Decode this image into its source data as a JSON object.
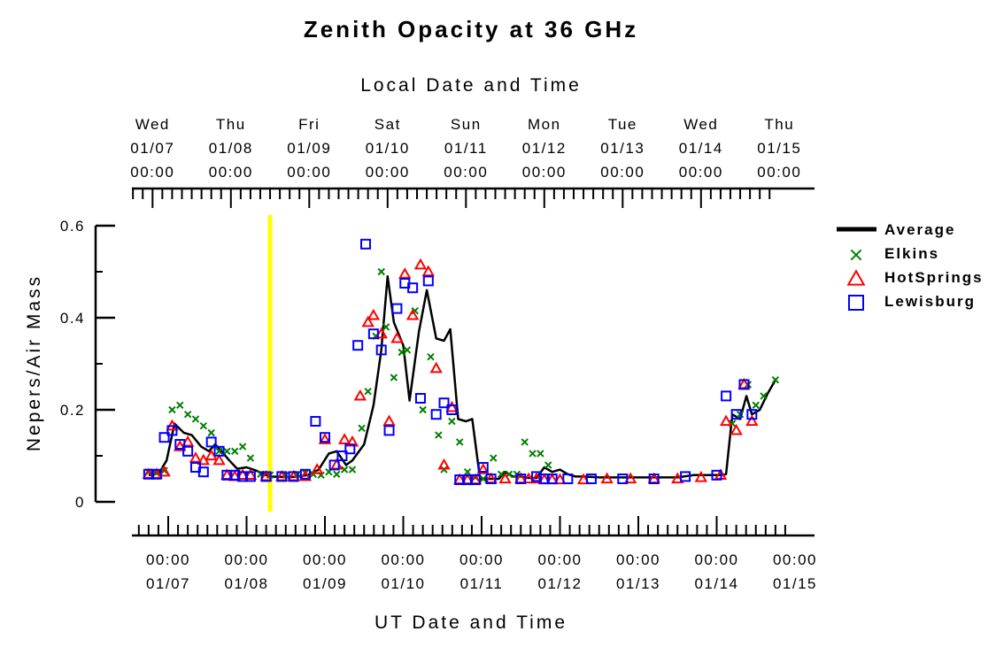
{
  "chart_data": {
    "type": "scatter",
    "title": "Zenith Opacity at 36 GHz",
    "top_axis_title": "Local Date and Time",
    "bottom_axis_title": "UT Date and Time",
    "ylabel": "Nepers/Air Mass",
    "ylim": [
      0,
      0.6
    ],
    "y_ticks": [
      "0",
      "0.2",
      "0.4",
      "0.6"
    ],
    "y_tick_values": [
      0,
      0.2,
      0.4,
      0.6
    ],
    "xlim": [
      -0.5,
      8.25
    ],
    "top_ticks": [
      {
        "x": -0.2,
        "day": "Wed",
        "date": "01/07",
        "time": "00:00"
      },
      {
        "x": 0.8,
        "day": "Thu",
        "date": "01/08",
        "time": "00:00"
      },
      {
        "x": 1.8,
        "day": "Fri",
        "date": "01/09",
        "time": "00:00"
      },
      {
        "x": 2.8,
        "day": "Sat",
        "date": "01/10",
        "time": "00:00"
      },
      {
        "x": 3.8,
        "day": "Sun",
        "date": "01/11",
        "time": "00:00"
      },
      {
        "x": 4.8,
        "day": "Mon",
        "date": "01/12",
        "time": "00:00"
      },
      {
        "x": 5.8,
        "day": "Tue",
        "date": "01/13",
        "time": "00:00"
      },
      {
        "x": 6.8,
        "day": "Wed",
        "date": "01/14",
        "time": "00:00"
      },
      {
        "x": 7.8,
        "day": "Thu",
        "date": "01/15",
        "time": "00:00"
      }
    ],
    "bottom_ticks": [
      {
        "x": 0,
        "time": "00:00",
        "date": "01/07"
      },
      {
        "x": 1,
        "time": "00:00",
        "date": "01/08"
      },
      {
        "x": 2,
        "time": "00:00",
        "date": "01/09"
      },
      {
        "x": 3,
        "time": "00:00",
        "date": "01/10"
      },
      {
        "x": 4,
        "time": "00:00",
        "date": "01/11"
      },
      {
        "x": 5,
        "time": "00:00",
        "date": "01/12"
      },
      {
        "x": 6,
        "time": "00:00",
        "date": "01/13"
      },
      {
        "x": 7,
        "time": "00:00",
        "date": "01/14"
      },
      {
        "x": 8,
        "time": "00:00",
        "date": "01/15"
      }
    ],
    "current_time_marker": {
      "x": 1.3,
      "color": "#ffff00"
    },
    "legend_position": "right",
    "series": [
      {
        "name": "Average",
        "marker": "line",
        "color": "#000000",
        "points": [
          [
            -0.25,
            0.058
          ],
          [
            -0.12,
            0.062
          ],
          [
            -0.02,
            0.09
          ],
          [
            0.08,
            0.17
          ],
          [
            0.2,
            0.15
          ],
          [
            0.3,
            0.145
          ],
          [
            0.42,
            0.12
          ],
          [
            0.52,
            0.11
          ],
          [
            0.6,
            0.125
          ],
          [
            0.68,
            0.11
          ],
          [
            0.78,
            0.09
          ],
          [
            0.88,
            0.072
          ],
          [
            1.0,
            0.075
          ],
          [
            1.12,
            0.068
          ],
          [
            1.22,
            0.06
          ],
          [
            1.3,
            0.055
          ],
          [
            1.45,
            0.054
          ],
          [
            1.6,
            0.054
          ],
          [
            1.78,
            0.058
          ],
          [
            1.92,
            0.07
          ],
          [
            2.05,
            0.105
          ],
          [
            2.15,
            0.11
          ],
          [
            2.27,
            0.08
          ],
          [
            2.35,
            0.09
          ],
          [
            2.5,
            0.125
          ],
          [
            2.62,
            0.21
          ],
          [
            2.72,
            0.33
          ],
          [
            2.8,
            0.49
          ],
          [
            2.88,
            0.39
          ],
          [
            3.0,
            0.34
          ],
          [
            3.08,
            0.22
          ],
          [
            3.2,
            0.37
          ],
          [
            3.3,
            0.46
          ],
          [
            3.42,
            0.355
          ],
          [
            3.52,
            0.35
          ],
          [
            3.6,
            0.375
          ],
          [
            3.7,
            0.18
          ],
          [
            3.8,
            0.175
          ],
          [
            3.88,
            0.18
          ],
          [
            3.98,
            0.05
          ],
          [
            4.1,
            0.05
          ],
          [
            4.22,
            0.05
          ],
          [
            4.3,
            0.065
          ],
          [
            4.4,
            0.055
          ],
          [
            4.5,
            0.055
          ],
          [
            4.6,
            0.052
          ],
          [
            4.7,
            0.052
          ],
          [
            4.8,
            0.075
          ],
          [
            4.9,
            0.065
          ],
          [
            5.0,
            0.07
          ],
          [
            5.1,
            0.06
          ],
          [
            5.2,
            0.055
          ],
          [
            5.3,
            0.055
          ],
          [
            5.5,
            0.053
          ],
          [
            5.7,
            0.053
          ],
          [
            5.9,
            0.053
          ],
          [
            6.1,
            0.053
          ],
          [
            6.3,
            0.053
          ],
          [
            6.5,
            0.053
          ],
          [
            6.7,
            0.058
          ],
          [
            6.9,
            0.058
          ],
          [
            7.05,
            0.058
          ],
          [
            7.12,
            0.06
          ],
          [
            7.2,
            0.19
          ],
          [
            7.3,
            0.18
          ],
          [
            7.38,
            0.23
          ],
          [
            7.45,
            0.19
          ],
          [
            7.55,
            0.2
          ],
          [
            7.65,
            0.235
          ],
          [
            7.75,
            0.265
          ]
        ]
      },
      {
        "name": "Elkins",
        "marker": "x",
        "color": "#008000",
        "points": [
          [
            -0.25,
            0.065
          ],
          [
            -0.15,
            0.063
          ],
          [
            -0.05,
            0.068
          ],
          [
            0.05,
            0.2
          ],
          [
            0.15,
            0.21
          ],
          [
            0.25,
            0.19
          ],
          [
            0.35,
            0.18
          ],
          [
            0.45,
            0.165
          ],
          [
            0.55,
            0.15
          ],
          [
            0.65,
            0.11
          ],
          [
            0.75,
            0.11
          ],
          [
            0.85,
            0.11
          ],
          [
            0.95,
            0.12
          ],
          [
            1.05,
            0.095
          ],
          [
            1.18,
            0.06
          ],
          [
            1.3,
            0.058
          ],
          [
            1.5,
            0.058
          ],
          [
            1.65,
            0.06
          ],
          [
            1.75,
            0.063
          ],
          [
            1.85,
            0.06
          ],
          [
            1.95,
            0.058
          ],
          [
            2.05,
            0.065
          ],
          [
            2.15,
            0.06
          ],
          [
            2.25,
            0.07
          ],
          [
            2.35,
            0.07
          ],
          [
            2.47,
            0.16
          ],
          [
            2.55,
            0.24
          ],
          [
            2.65,
            0.36
          ],
          [
            2.72,
            0.5
          ],
          [
            2.78,
            0.38
          ],
          [
            2.88,
            0.27
          ],
          [
            2.98,
            0.325
          ],
          [
            3.05,
            0.33
          ],
          [
            3.15,
            0.415
          ],
          [
            3.25,
            0.2
          ],
          [
            3.35,
            0.315
          ],
          [
            3.45,
            0.145
          ],
          [
            3.52,
            0.07
          ],
          [
            3.62,
            0.175
          ],
          [
            3.72,
            0.13
          ],
          [
            3.82,
            0.065
          ],
          [
            3.92,
            0.053
          ],
          [
            4.02,
            0.05
          ],
          [
            4.15,
            0.095
          ],
          [
            4.25,
            0.06
          ],
          [
            4.35,
            0.06
          ],
          [
            4.45,
            0.06
          ],
          [
            4.55,
            0.13
          ],
          [
            4.65,
            0.105
          ],
          [
            4.75,
            0.105
          ],
          [
            4.85,
            0.08
          ],
          [
            7.2,
            0.17
          ],
          [
            7.3,
            0.19
          ],
          [
            7.4,
            0.255
          ],
          [
            7.5,
            0.21
          ],
          [
            7.6,
            0.23
          ],
          [
            7.75,
            0.265
          ]
        ]
      },
      {
        "name": "HotSprings",
        "marker": "triangle",
        "color": "#ff0000",
        "points": [
          [
            -0.25,
            0.06
          ],
          [
            -0.15,
            0.06
          ],
          [
            -0.05,
            0.065
          ],
          [
            0.05,
            0.165
          ],
          [
            0.15,
            0.12
          ],
          [
            0.25,
            0.13
          ],
          [
            0.35,
            0.095
          ],
          [
            0.45,
            0.09
          ],
          [
            0.55,
            0.1
          ],
          [
            0.65,
            0.09
          ],
          [
            0.75,
            0.058
          ],
          [
            0.85,
            0.055
          ],
          [
            0.95,
            0.058
          ],
          [
            1.05,
            0.058
          ],
          [
            1.25,
            0.055
          ],
          [
            1.45,
            0.055
          ],
          [
            1.6,
            0.055
          ],
          [
            1.75,
            0.055
          ],
          [
            1.9,
            0.07
          ],
          [
            2.0,
            0.135
          ],
          [
            2.15,
            0.08
          ],
          [
            2.25,
            0.135
          ],
          [
            2.35,
            0.13
          ],
          [
            2.45,
            0.23
          ],
          [
            2.55,
            0.39
          ],
          [
            2.62,
            0.405
          ],
          [
            2.72,
            0.365
          ],
          [
            2.82,
            0.175
          ],
          [
            2.92,
            0.355
          ],
          [
            3.02,
            0.495
          ],
          [
            3.12,
            0.405
          ],
          [
            3.22,
            0.515
          ],
          [
            3.32,
            0.5
          ],
          [
            3.42,
            0.29
          ],
          [
            3.52,
            0.08
          ],
          [
            3.62,
            0.205
          ],
          [
            3.72,
            0.048
          ],
          [
            3.82,
            0.048
          ],
          [
            3.92,
            0.048
          ],
          [
            4.02,
            0.07
          ],
          [
            4.12,
            0.05
          ],
          [
            4.3,
            0.05
          ],
          [
            4.5,
            0.05
          ],
          [
            4.6,
            0.05
          ],
          [
            4.7,
            0.05
          ],
          [
            4.8,
            0.048
          ],
          [
            4.9,
            0.048
          ],
          [
            5.0,
            0.048
          ],
          [
            5.3,
            0.048
          ],
          [
            5.6,
            0.05
          ],
          [
            5.9,
            0.05
          ],
          [
            6.2,
            0.05
          ],
          [
            6.5,
            0.05
          ],
          [
            6.8,
            0.053
          ],
          [
            7.05,
            0.058
          ],
          [
            7.12,
            0.175
          ],
          [
            7.25,
            0.155
          ],
          [
            7.35,
            0.255
          ],
          [
            7.45,
            0.175
          ]
        ]
      },
      {
        "name": "Lewisburg",
        "marker": "square",
        "color": "#0000ff",
        "points": [
          [
            -0.25,
            0.06
          ],
          [
            -0.15,
            0.06
          ],
          [
            -0.05,
            0.14
          ],
          [
            0.05,
            0.155
          ],
          [
            0.15,
            0.125
          ],
          [
            0.25,
            0.11
          ],
          [
            0.35,
            0.075
          ],
          [
            0.45,
            0.065
          ],
          [
            0.55,
            0.13
          ],
          [
            0.65,
            0.11
          ],
          [
            0.75,
            0.058
          ],
          [
            0.85,
            0.058
          ],
          [
            0.95,
            0.055
          ],
          [
            1.05,
            0.055
          ],
          [
            1.25,
            0.055
          ],
          [
            1.45,
            0.055
          ],
          [
            1.6,
            0.055
          ],
          [
            1.75,
            0.06
          ],
          [
            1.88,
            0.175
          ],
          [
            2.0,
            0.14
          ],
          [
            2.12,
            0.08
          ],
          [
            2.22,
            0.1
          ],
          [
            2.32,
            0.115
          ],
          [
            2.42,
            0.34
          ],
          [
            2.52,
            0.56
          ],
          [
            2.62,
            0.365
          ],
          [
            2.72,
            0.33
          ],
          [
            2.82,
            0.155
          ],
          [
            2.92,
            0.42
          ],
          [
            3.02,
            0.475
          ],
          [
            3.12,
            0.465
          ],
          [
            3.22,
            0.225
          ],
          [
            3.32,
            0.48
          ],
          [
            3.42,
            0.19
          ],
          [
            3.52,
            0.215
          ],
          [
            3.62,
            0.2
          ],
          [
            3.72,
            0.048
          ],
          [
            3.82,
            0.048
          ],
          [
            3.92,
            0.048
          ],
          [
            4.02,
            0.075
          ],
          [
            4.12,
            0.05
          ],
          [
            4.5,
            0.05
          ],
          [
            4.7,
            0.055
          ],
          [
            4.8,
            0.05
          ],
          [
            4.9,
            0.05
          ],
          [
            5.1,
            0.05
          ],
          [
            5.4,
            0.05
          ],
          [
            5.8,
            0.05
          ],
          [
            6.2,
            0.05
          ],
          [
            6.6,
            0.055
          ],
          [
            7.0,
            0.058
          ],
          [
            7.12,
            0.23
          ],
          [
            7.25,
            0.19
          ],
          [
            7.35,
            0.255
          ],
          [
            7.45,
            0.19
          ]
        ]
      }
    ]
  }
}
